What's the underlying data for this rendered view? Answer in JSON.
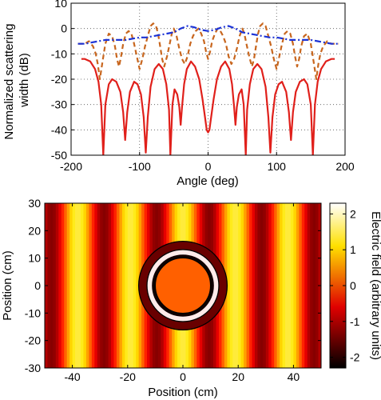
{
  "chart_data": [
    {
      "type": "line",
      "xlabel": "Angle (deg)",
      "ylabel": "Normalized scattering width (dB)",
      "xlim": [
        -200,
        200
      ],
      "ylim": [
        -50,
        10
      ],
      "xticks": [
        "-200",
        "-100",
        "0",
        "100",
        "200"
      ],
      "yticks": [
        "10",
        "0",
        "-10",
        "-20",
        "-30",
        "-40",
        "-50"
      ],
      "grid": true,
      "series": [
        {
          "style": "solid",
          "color": "#e0201b",
          "x": [
            -185,
            -180,
            -172,
            -165,
            -160,
            -156,
            -153,
            -150,
            -145,
            -140,
            -134,
            -128,
            -124,
            -121,
            -118,
            -114,
            -108,
            -103,
            -98,
            -94,
            -91,
            -88,
            -84,
            -78,
            -72,
            -66,
            -61,
            -57,
            -55,
            -52,
            -49,
            -45,
            -42,
            -40,
            -38,
            -35,
            -31,
            -25,
            -19,
            -13,
            -8,
            -4,
            -2,
            0,
            2,
            4,
            8,
            13,
            19,
            25,
            31,
            35,
            38,
            40,
            42,
            45,
            49,
            52,
            55,
            57,
            61,
            66,
            72,
            78,
            84,
            88,
            91,
            94,
            98,
            103,
            108,
            114,
            118,
            121,
            124,
            128,
            134,
            140,
            145,
            150,
            153,
            156,
            160,
            165,
            172,
            180,
            185
          ],
          "y": [
            -12,
            -12,
            -13,
            -16,
            -21,
            -30,
            -50,
            -30,
            -22,
            -20,
            -21,
            -25,
            -33,
            -44,
            -33,
            -25,
            -21,
            -22,
            -26,
            -35,
            -49,
            -35,
            -23,
            -16,
            -14,
            -16,
            -22,
            -32,
            -50,
            -30,
            -24,
            -26,
            -31,
            -38,
            -31,
            -22,
            -16,
            -13,
            -15,
            -20,
            -28,
            -36,
            -40,
            -41,
            -40,
            -36,
            -28,
            -20,
            -15,
            -13,
            -16,
            -22,
            -31,
            -38,
            -31,
            -26,
            -24,
            -30,
            -50,
            -32,
            -22,
            -16,
            -14,
            -16,
            -23,
            -35,
            -49,
            -35,
            -26,
            -22,
            -21,
            -25,
            -33,
            -44,
            -33,
            -25,
            -21,
            -20,
            -22,
            -30,
            -50,
            -30,
            -21,
            -16,
            -13,
            -12,
            -12
          ]
        },
        {
          "style": "dashed",
          "color": "#c8661e",
          "x": [
            -190,
            -180,
            -174,
            -168,
            -164,
            -161,
            -158,
            -154,
            -150,
            -145,
            -140,
            -136,
            -133,
            -130,
            -127,
            -124,
            -120,
            -116,
            -112,
            -108,
            -104,
            -100,
            -96,
            -92,
            -88,
            -84,
            -80,
            -76,
            -73,
            -70,
            -67,
            -64,
            -60,
            -56,
            -53,
            -50,
            -46,
            -42,
            -38,
            -34,
            -30,
            -26,
            -22,
            -18,
            -14,
            -10,
            -6,
            -3,
            0,
            3,
            6,
            10,
            14,
            18,
            22,
            26,
            30,
            34,
            38,
            42,
            46,
            50,
            53,
            56,
            60,
            64,
            67,
            70,
            73,
            76,
            80,
            84,
            88,
            92,
            96,
            100,
            104,
            108,
            112,
            116,
            120,
            124,
            127,
            130,
            133,
            136,
            140,
            145,
            150,
            154,
            158,
            161,
            164,
            168,
            174,
            180,
            190
          ],
          "y": [
            -6,
            -6,
            -5,
            -7,
            -10,
            -14,
            -20,
            -13,
            -6,
            -2,
            -3,
            -7,
            -12,
            -15,
            -11,
            -6,
            -2,
            -1,
            -2,
            -6,
            -11,
            -16,
            -12,
            -7,
            -3,
            1,
            2,
            1,
            -2,
            -7,
            -12,
            -15,
            -11,
            -6,
            -2,
            0,
            -3,
            -8,
            -12,
            -14,
            -11,
            -6,
            -3,
            -1,
            0,
            -2,
            -5,
            -9,
            -12,
            -9,
            -5,
            -2,
            0,
            -1,
            -3,
            -6,
            -11,
            -14,
            -12,
            -8,
            -3,
            0,
            -2,
            -6,
            -11,
            -15,
            -12,
            -7,
            -2,
            1,
            2,
            1,
            -3,
            -7,
            -12,
            -16,
            -11,
            -6,
            -2,
            -1,
            -2,
            -6,
            -11,
            -15,
            -12,
            -7,
            -3,
            -2,
            -6,
            -13,
            -20,
            -14,
            -10,
            -7,
            -5,
            -6,
            -6
          ]
        },
        {
          "style": "dashdot",
          "color": "#1c33d6",
          "x": [
            -190,
            -180,
            -170,
            -160,
            -150,
            -140,
            -130,
            -120,
            -110,
            -100,
            -90,
            -80,
            -70,
            -60,
            -50,
            -40,
            -30,
            -20,
            -10,
            0,
            10,
            20,
            30,
            40,
            50,
            60,
            70,
            80,
            90,
            100,
            110,
            120,
            130,
            140,
            150,
            160,
            170,
            180,
            190
          ],
          "y": [
            -6,
            -6,
            -5.5,
            -5,
            -4.5,
            -4.5,
            -4.5,
            -4.5,
            -4,
            -3.5,
            -3.5,
            -3,
            -2.5,
            -2,
            -1.5,
            0,
            1,
            0.5,
            -0.5,
            -1,
            -0.5,
            0.5,
            1,
            0,
            -1.5,
            -2,
            -2.5,
            -3,
            -3.5,
            -3.5,
            -4,
            -4.5,
            -4.5,
            -4.5,
            -4.5,
            -5,
            -5.5,
            -6,
            -6
          ]
        }
      ]
    },
    {
      "type": "heatmap",
      "xlabel": "Position (cm)",
      "ylabel": "Position (cm)",
      "xlim": [
        -50,
        50
      ],
      "ylim": [
        -30,
        30
      ],
      "xticks": [
        "-40",
        "-20",
        "0",
        "20",
        "40"
      ],
      "yticks": [
        "30",
        "20",
        "10",
        "0",
        "-10",
        "-20",
        "-30"
      ],
      "grid": false,
      "colorbar": {
        "label": "Electric field (arbitrary units)",
        "range": [
          -2.3,
          2.3
        ],
        "ticks": [
          "2",
          "1",
          "0",
          "-1",
          "-2"
        ],
        "colormap": "hot"
      },
      "field": {
        "pattern": "vertical stripes (standing wave along x)",
        "period_cm": 19,
        "amplitude": 1.4,
        "offset": 0
      },
      "circles_radius_cm": [
        10,
        13,
        16
      ],
      "inner_disk_value": 0.1
    }
  ]
}
